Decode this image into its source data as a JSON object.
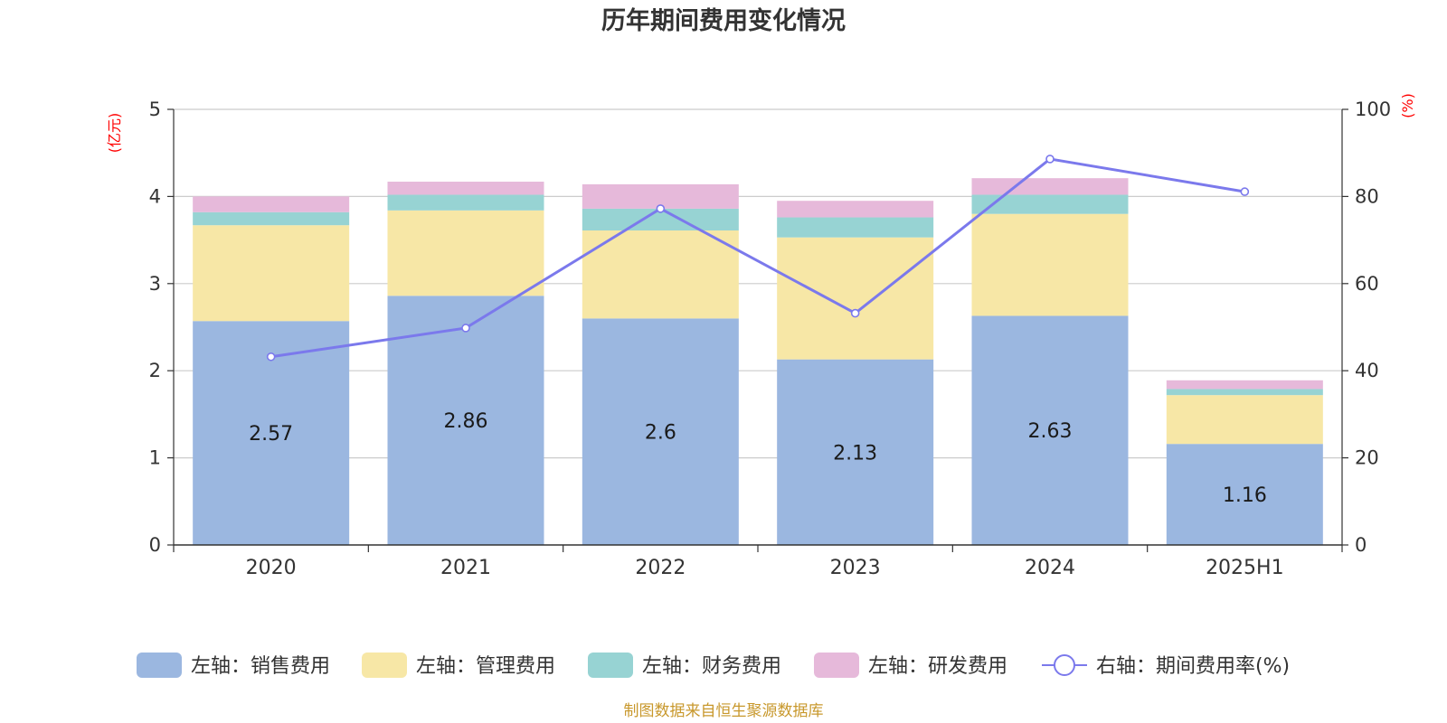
{
  "chart_data": {
    "type": "bar",
    "title": "历年期间费用变化情况",
    "left_unit": "(亿元)",
    "right_unit": "(%)",
    "categories": [
      "2020",
      "2021",
      "2022",
      "2023",
      "2024",
      "2025H1"
    ],
    "left_axis": {
      "min": 0,
      "max": 5,
      "ticks": [
        "0",
        "1",
        "2",
        "3",
        "4",
        "5"
      ]
    },
    "right_axis": {
      "min": 0,
      "max": 100,
      "ticks": [
        "0",
        "20",
        "40",
        "60",
        "80",
        "100"
      ]
    },
    "grid": true,
    "legend_position": "bottom",
    "series": [
      {
        "name": "左轴：销售费用",
        "type": "bar",
        "axis": "left",
        "color": "#9bb7e0",
        "values": [
          2.57,
          2.86,
          2.6,
          2.13,
          2.63,
          1.16
        ],
        "labels": [
          "2.57",
          "2.86",
          "2.6",
          "2.13",
          "2.63",
          "1.16"
        ]
      },
      {
        "name": "左轴：管理费用",
        "type": "bar",
        "axis": "left",
        "color": "#f7e7a6",
        "values": [
          1.1,
          0.98,
          1.01,
          1.4,
          1.17,
          0.56
        ]
      },
      {
        "name": "左轴：财务费用",
        "type": "bar",
        "axis": "left",
        "color": "#97d3d3",
        "values": [
          0.15,
          0.18,
          0.25,
          0.23,
          0.22,
          0.07
        ]
      },
      {
        "name": "左轴：研发费用",
        "type": "bar",
        "axis": "left",
        "color": "#e6b9da",
        "values": [
          0.18,
          0.15,
          0.28,
          0.19,
          0.19,
          0.1
        ]
      },
      {
        "name": "右轴：期间费用率(%)",
        "type": "line",
        "axis": "right",
        "color": "#7b79ec",
        "values": [
          43.2,
          49.8,
          77.2,
          53.2,
          88.6,
          81.1
        ]
      }
    ],
    "source": "制图数据来自恒生聚源数据库"
  }
}
